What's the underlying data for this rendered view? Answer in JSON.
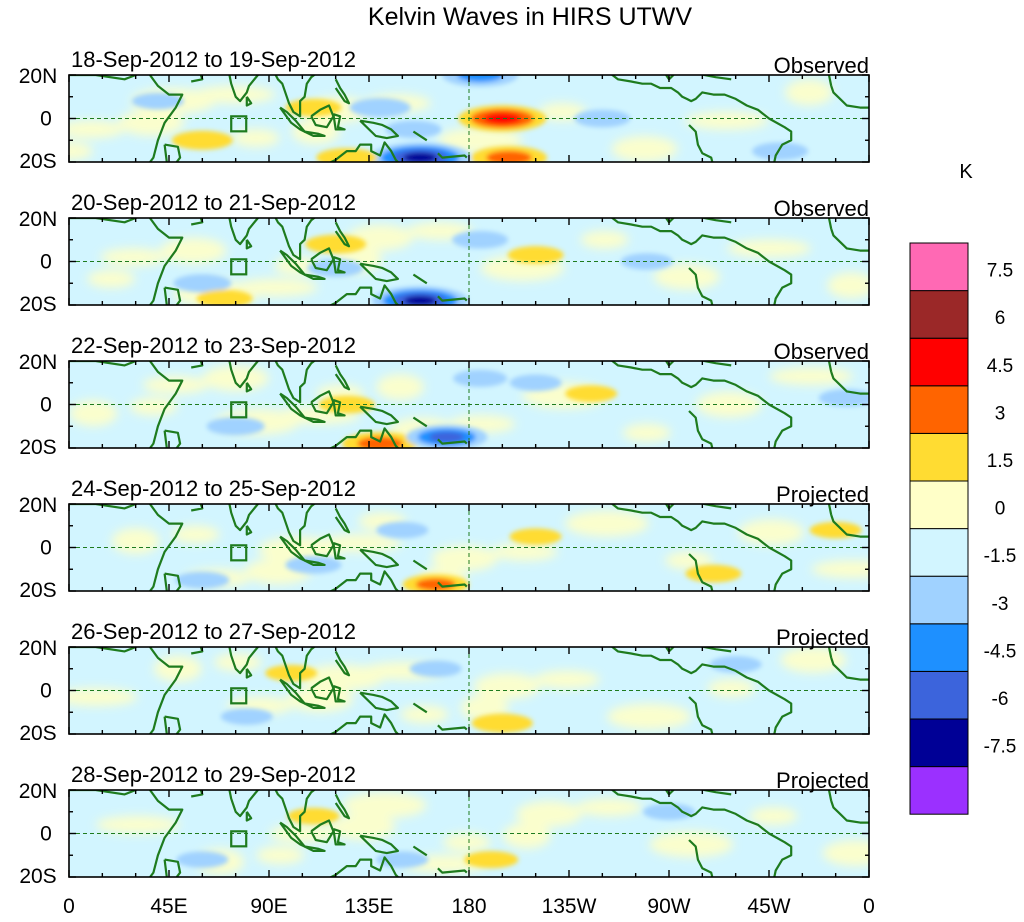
{
  "chart_data": {
    "type": "heatmap",
    "title": "Kelvin Waves in HIRS UTWV",
    "units": "K",
    "x_tick_labels": [
      "0",
      "45E",
      "90E",
      "135E",
      "180",
      "135W",
      "90W",
      "45W",
      "0"
    ],
    "x_ticks_deg": [
      0,
      45,
      90,
      135,
      180,
      225,
      270,
      315,
      360
    ],
    "xlim": [
      0,
      360
    ],
    "y_tick_labels": [
      "20N",
      "0",
      "20S"
    ],
    "ylim": [
      -20,
      20
    ],
    "colorbar_levels": [
      -7.5,
      -6,
      -4.5,
      -3,
      -1.5,
      0,
      1.5,
      3,
      4.5,
      6,
      7.5
    ],
    "colorbar_labels": [
      "-7.5",
      "-6",
      "-4.5",
      "-3",
      "-1.5",
      "0",
      "1.5",
      "3",
      "4.5",
      "6",
      "7.5"
    ],
    "colorbar_colors": [
      "#9b30ff",
      "#000096",
      "#3c64dc",
      "#1e90ff",
      "#a0d2ff",
      "#d2f5ff",
      "#ffffc8",
      "#ffdc32",
      "#ff6400",
      "#ff0000",
      "#9b2828",
      "#ff69b4"
    ],
    "panels": [
      {
        "date_range": "18-Sep-2012 to 19-Sep-2012",
        "status": "Observed",
        "anomalies": [
          {
            "lon": 195,
            "lat": 0,
            "value": 5.2
          },
          {
            "lon": 198,
            "lat": -18,
            "value": 4.0
          },
          {
            "lon": 158,
            "lat": -18,
            "value": -6.5
          },
          {
            "lon": 185,
            "lat": 20,
            "value": -4.0
          },
          {
            "lon": 125,
            "lat": -18,
            "value": 2.5
          },
          {
            "lon": 60,
            "lat": -10,
            "value": 2.5
          },
          {
            "lon": 110,
            "lat": 5,
            "value": 2.0
          },
          {
            "lon": 140,
            "lat": 5,
            "value": -2.5
          },
          {
            "lon": 155,
            "lat": -5,
            "value": -2.0
          },
          {
            "lon": 240,
            "lat": 0,
            "value": -2.0
          },
          {
            "lon": 320,
            "lat": -15,
            "value": -2.0
          },
          {
            "lon": 40,
            "lat": 8,
            "value": -1.6
          }
        ]
      },
      {
        "date_range": "20-Sep-2012 to 21-Sep-2012",
        "status": "Observed",
        "anomalies": [
          {
            "lon": 158,
            "lat": -18,
            "value": -6.0
          },
          {
            "lon": 120,
            "lat": 8,
            "value": 2.5
          },
          {
            "lon": 210,
            "lat": 3,
            "value": 2.0
          },
          {
            "lon": 120,
            "lat": -3,
            "value": -2.0
          },
          {
            "lon": 185,
            "lat": 10,
            "value": -2.0
          },
          {
            "lon": 60,
            "lat": -10,
            "value": -2.2
          },
          {
            "lon": 70,
            "lat": -17,
            "value": 2.0
          },
          {
            "lon": 260,
            "lat": 0,
            "value": -1.6
          }
        ]
      },
      {
        "date_range": "22-Sep-2012 to 23-Sep-2012",
        "status": "Observed",
        "anomalies": [
          {
            "lon": 140,
            "lat": -18,
            "value": 4.0
          },
          {
            "lon": 170,
            "lat": -15,
            "value": -4.5
          },
          {
            "lon": 125,
            "lat": 0,
            "value": 2.0
          },
          {
            "lon": 75,
            "lat": -10,
            "value": -2.2
          },
          {
            "lon": 185,
            "lat": 12,
            "value": -1.8
          },
          {
            "lon": 235,
            "lat": 5,
            "value": 1.6
          },
          {
            "lon": 210,
            "lat": 10,
            "value": -1.6
          },
          {
            "lon": 350,
            "lat": 3,
            "value": -2.0
          }
        ]
      },
      {
        "date_range": "24-Sep-2012 to 25-Sep-2012",
        "status": "Projected",
        "anomalies": [
          {
            "lon": 165,
            "lat": -17,
            "value": 3.0
          },
          {
            "lon": 110,
            "lat": -8,
            "value": -2.0
          },
          {
            "lon": 150,
            "lat": 8,
            "value": -1.6
          },
          {
            "lon": 60,
            "lat": -15,
            "value": -1.8
          },
          {
            "lon": 210,
            "lat": 5,
            "value": 1.6
          },
          {
            "lon": 290,
            "lat": -12,
            "value": 2.0
          },
          {
            "lon": 345,
            "lat": 8,
            "value": 1.6
          }
        ]
      },
      {
        "date_range": "26-Sep-2012 to 27-Sep-2012",
        "status": "Projected",
        "anomalies": [
          {
            "lon": 195,
            "lat": -15,
            "value": 2.5
          },
          {
            "lon": 165,
            "lat": 10,
            "value": -1.6
          },
          {
            "lon": 80,
            "lat": -12,
            "value": -1.6
          },
          {
            "lon": 300,
            "lat": 12,
            "value": -1.6
          },
          {
            "lon": 100,
            "lat": 8,
            "value": 1.6
          }
        ]
      },
      {
        "date_range": "28-Sep-2012 to 29-Sep-2012",
        "status": "Projected",
        "anomalies": [
          {
            "lon": 190,
            "lat": -12,
            "value": 1.8
          },
          {
            "lon": 60,
            "lat": -12,
            "value": -1.6
          },
          {
            "lon": 150,
            "lat": -12,
            "value": -1.6
          },
          {
            "lon": 270,
            "lat": 10,
            "value": -1.6
          },
          {
            "lon": 110,
            "lat": 8,
            "value": 1.6
          }
        ]
      }
    ]
  }
}
